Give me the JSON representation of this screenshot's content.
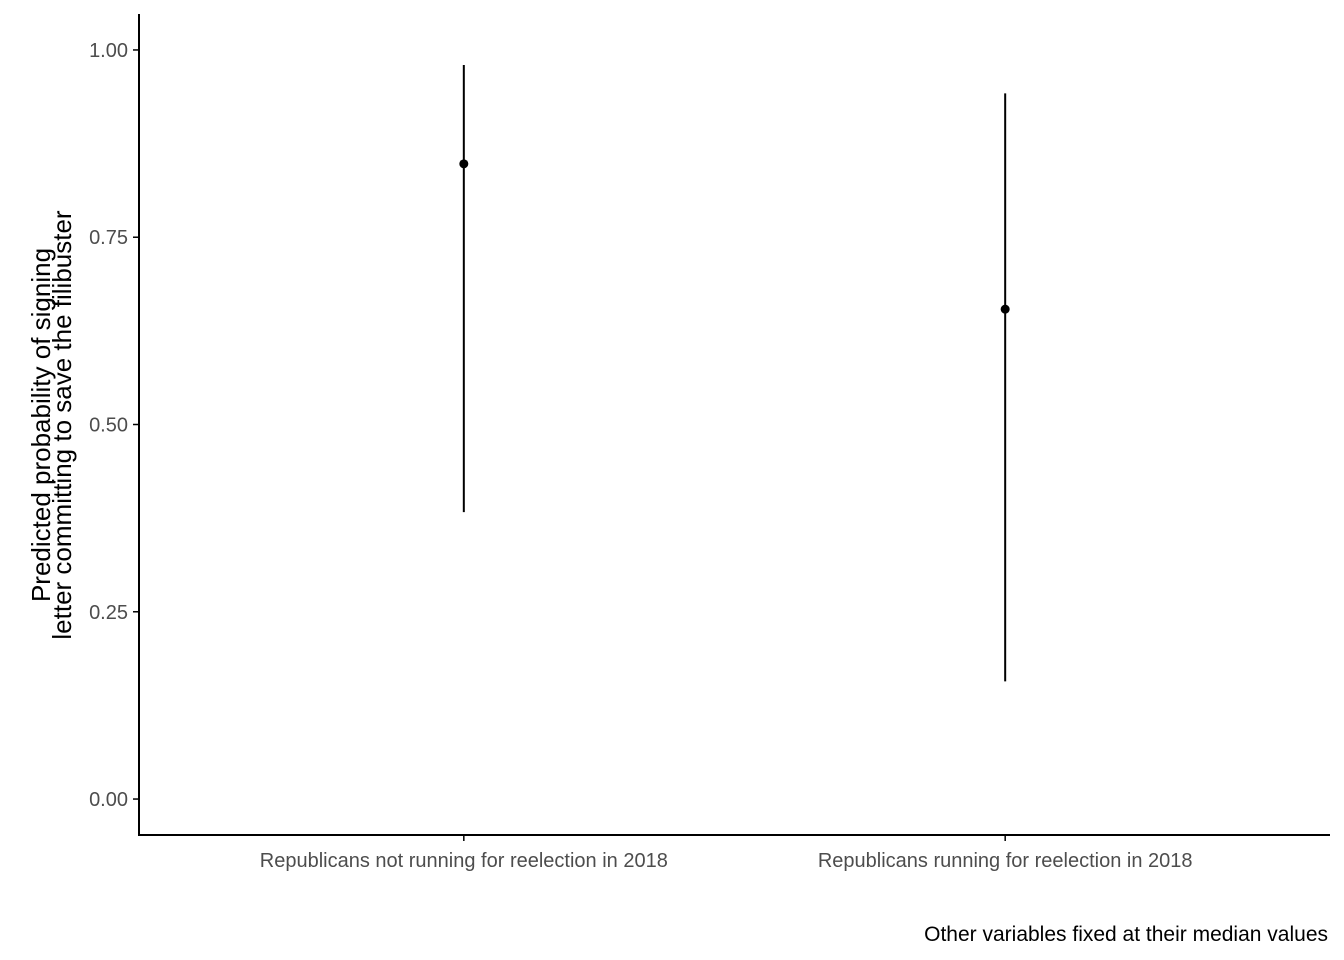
{
  "chart_data": {
    "type": "pointrange",
    "categories": [
      "Republicans not running for reelection in 2018",
      "Republicans running for reelection in 2018"
    ],
    "estimates": [
      0.848,
      0.654
    ],
    "lower": [
      0.383,
      0.157
    ],
    "upper": [
      0.98,
      0.942
    ],
    "ylabel_lines": [
      "Predicted probability of signing",
      "letter committing to save the filibuster"
    ],
    "xlabel": "",
    "caption": "Other variables fixed at their median values",
    "yticks": [
      0,
      0.25,
      0.5,
      0.75,
      1
    ],
    "ytick_labels": [
      "0.00",
      "0.25",
      "0.50",
      "0.75",
      "1.00"
    ],
    "ylim": [
      -0.048,
      1.048
    ],
    "grid": false,
    "legend": "none",
    "colors": {
      "point": "#000000",
      "axis": "#000000",
      "tick_text": "#4d4d4d"
    }
  }
}
